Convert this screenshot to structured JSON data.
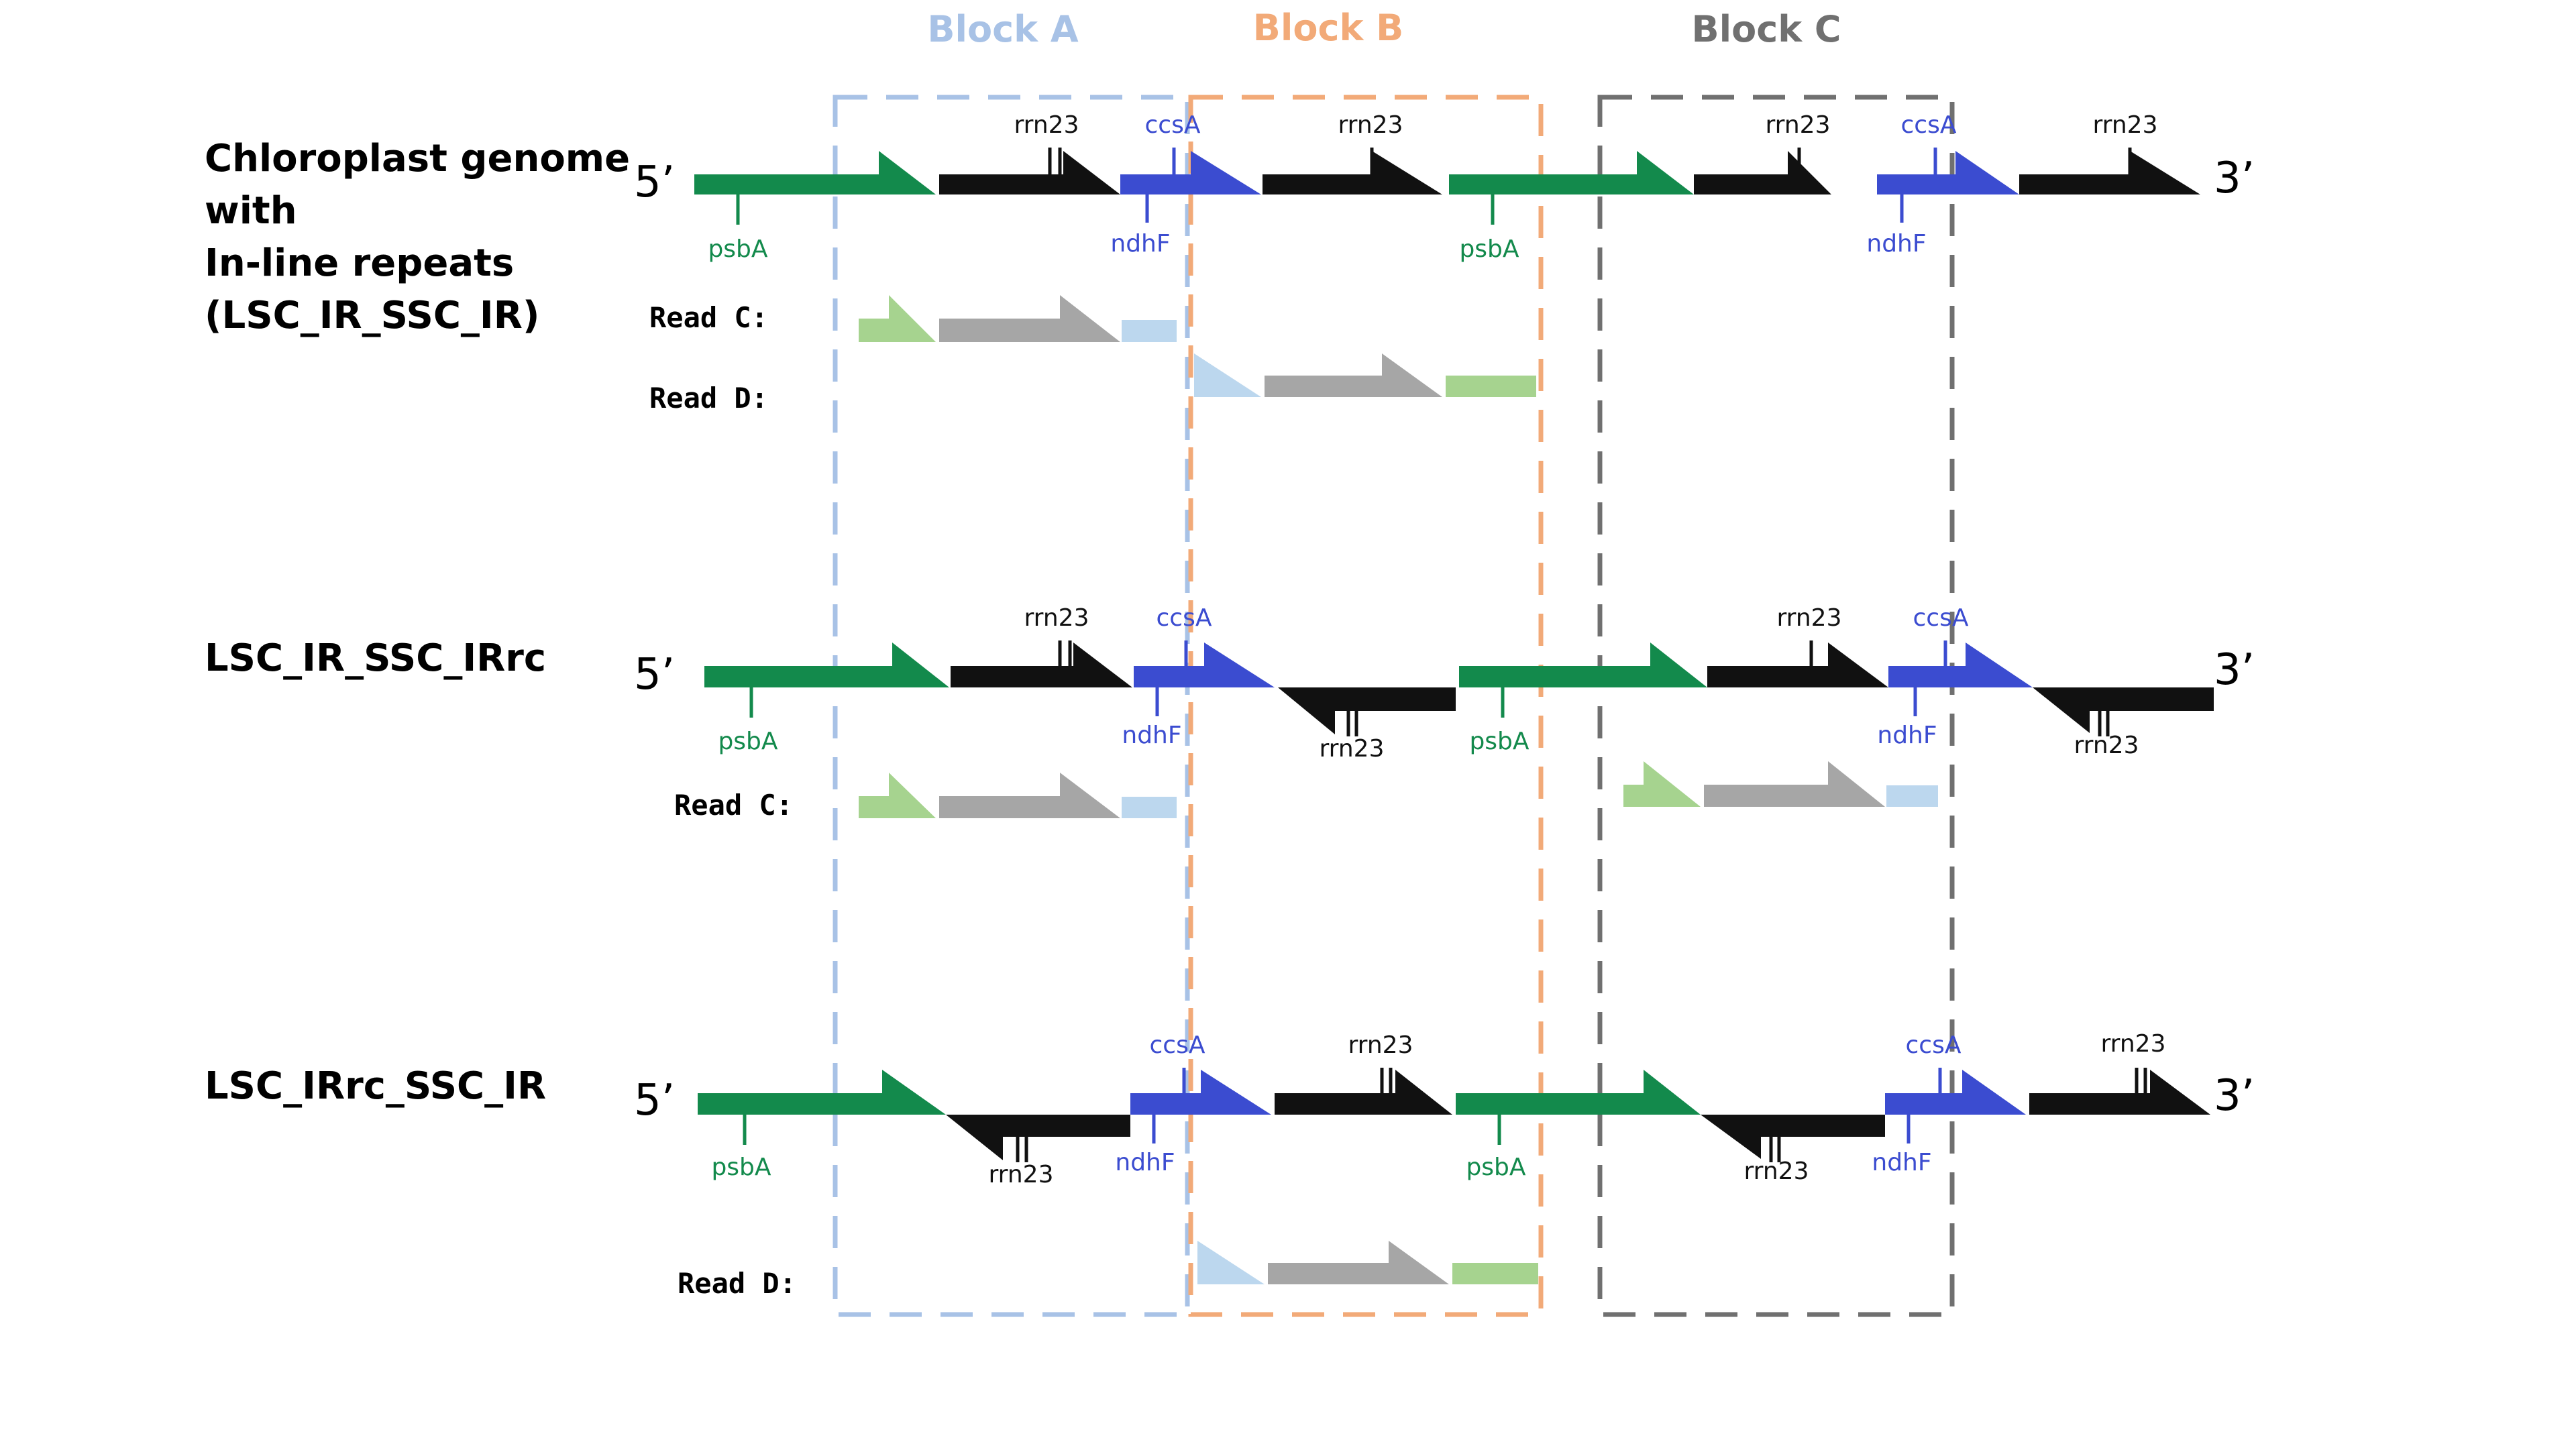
{
  "colors": {
    "psbA": "#138a4c",
    "rrn23": "#111111",
    "ndhF": "#3b4cd0",
    "read_psbA": "#a6d38f",
    "read_rrn23": "#a6a6a6",
    "read_ndhF": "#bcd7ee",
    "blockA": "#a8c2e6",
    "blockB": "#f2aa78",
    "blockC": "#707070"
  },
  "blocks": [
    {
      "label": "Block A"
    },
    {
      "label": "Block B"
    },
    {
      "label": "Block C"
    }
  ],
  "ends": {
    "five": "5’",
    "three": "3’"
  },
  "rows": [
    {
      "title_lines": [
        "Chloroplast genome",
        "with",
        "In-line repeats",
        "(LSC_IR_SSC_IR)"
      ],
      "gene_labels": [
        "psbA",
        "rrn23",
        "ccsA",
        "ndhF",
        "rrn23",
        "psbA",
        "rrn23",
        "ccsA",
        "ndhF",
        "rrn23"
      ],
      "reads": [
        {
          "label": "Read C:"
        },
        {
          "label": "Read D:"
        }
      ]
    },
    {
      "title_lines": [
        "LSC_IR_SSC_IRrc"
      ],
      "gene_labels": [
        "psbA",
        "rrn23",
        "ccsA",
        "ndhF",
        "rrn23",
        "psbA",
        "rrn23",
        "ccsA",
        "ndhF",
        "rrn23"
      ],
      "reads": [
        {
          "label": "Read C:"
        }
      ]
    },
    {
      "title_lines": [
        "LSC_IRrc_SSC_IR"
      ],
      "gene_labels": [
        "psbA",
        "rrn23",
        "ccsA",
        "ndhF",
        "rrn23",
        "psbA",
        "rrn23",
        "ccsA",
        "ndhF",
        "rrn23"
      ],
      "reads": [
        {
          "label": "Read D:"
        }
      ]
    }
  ]
}
